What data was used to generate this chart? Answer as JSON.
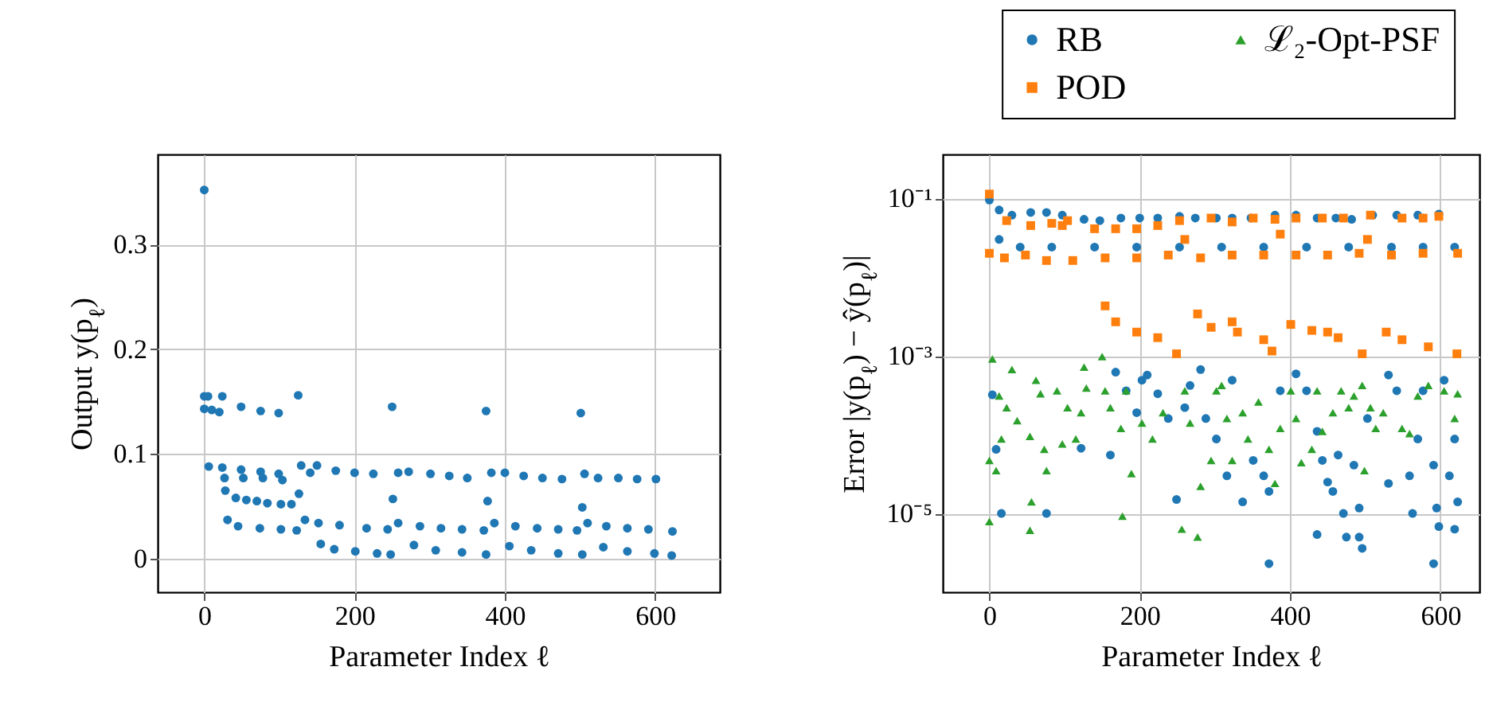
{
  "chart_data": [
    {
      "type": "scatter",
      "xlabel": "Parameter Index ℓ",
      "ylabel": "Output y(p$_{ℓ}$)",
      "color": "#1f77b4",
      "marker": "circle",
      "grid": true,
      "xlim": [
        -62,
        686
      ],
      "ylim": [
        -0.032,
        0.386
      ],
      "xticks": [
        0,
        200,
        400,
        600
      ],
      "yticks": [
        0,
        0.1,
        0.2,
        0.3
      ],
      "x": [
        0,
        0,
        5,
        24,
        49,
        75,
        99,
        125,
        250,
        375,
        501,
        0,
        10,
        20,
        6,
        24,
        27,
        49,
        52,
        75,
        78,
        99,
        104,
        129,
        141,
        150,
        175,
        200,
        225,
        258,
        272,
        301,
        326,
        350,
        382,
        400,
        425,
        450,
        476,
        506,
        524,
        551,
        576,
        601,
        28,
        42,
        56,
        70,
        84,
        102,
        116,
        126,
        251,
        377,
        503,
        31,
        45,
        74,
        102,
        123,
        134,
        152,
        180,
        216,
        244,
        258,
        287,
        315,
        343,
        372,
        386,
        414,
        443,
        471,
        496,
        510,
        535,
        563,
        591,
        623,
        155,
        173,
        201,
        230,
        248,
        279,
        308,
        343,
        375,
        406,
        435,
        471,
        503,
        531,
        563,
        599,
        622
      ],
      "values": [
        0.352,
        0.155,
        0.155,
        0.155,
        0.145,
        0.141,
        0.139,
        0.156,
        0.145,
        0.141,
        0.139,
        0.143,
        0.142,
        0.14,
        0.088,
        0.087,
        0.077,
        0.085,
        0.077,
        0.083,
        0.077,
        0.081,
        0.075,
        0.089,
        0.082,
        0.089,
        0.084,
        0.082,
        0.081,
        0.082,
        0.083,
        0.081,
        0.079,
        0.077,
        0.082,
        0.082,
        0.079,
        0.077,
        0.076,
        0.081,
        0.077,
        0.077,
        0.076,
        0.076,
        0.065,
        0.058,
        0.056,
        0.055,
        0.053,
        0.052,
        0.052,
        0.062,
        0.057,
        0.055,
        0.049,
        0.037,
        0.031,
        0.029,
        0.028,
        0.027,
        0.037,
        0.034,
        0.032,
        0.029,
        0.028,
        0.034,
        0.031,
        0.029,
        0.028,
        0.027,
        0.034,
        0.031,
        0.029,
        0.028,
        0.027,
        0.034,
        0.031,
        0.029,
        0.028,
        0.026,
        0.014,
        0.009,
        0.007,
        0.005,
        0.004,
        0.013,
        0.008,
        0.006,
        0.004,
        0.012,
        0.008,
        0.005,
        0.004,
        0.011,
        0.007,
        0.005,
        0.003
      ]
    },
    {
      "type": "scatter",
      "xlabel": "Parameter Index ℓ",
      "ylabel": "Error |y(p$_{ℓ}$) − ŷ(p$_{ℓ}$)|",
      "log": "y",
      "grid": true,
      "legend": "top",
      "xlim": [
        -62,
        652
      ],
      "ylim": [
        1e-06,
        0.36
      ],
      "xticks": [
        0,
        200,
        400,
        600
      ],
      "yticks": [
        {
          "value": 1e-05,
          "label": "10⁻⁵"
        },
        {
          "value": 0.001,
          "label": "10⁻³"
        },
        {
          "value": 0.1,
          "label": "10⁻¹"
        }
      ],
      "series": [
        {
          "name": "RB",
          "color": "#1f77b4",
          "marker": "circle",
          "x": [
            0,
            13,
            30,
            55,
            76,
            97,
            126,
            147,
            175,
            200,
            224,
            253,
            274,
            302,
            323,
            348,
            380,
            408,
            436,
            461,
            482,
            510,
            542,
            570,
            598,
            13,
            41,
            83,
            140,
            196,
            253,
            309,
            365,
            422,
            478,
            535,
            577,
            619,
            4,
            9,
            16,
            76,
            122,
            161,
            168,
            182,
            196,
            210,
            224,
            238,
            249,
            267,
            281,
            288,
            302,
            316,
            337,
            351,
            365,
            372,
            408,
            422,
            436,
            443,
            450,
            457,
            464,
            471,
            485,
            492,
            503,
            531,
            531,
            542,
            559,
            563,
            570,
            577,
            591,
            595,
            598,
            605,
            612,
            619,
            623,
            619,
            436,
            475,
            492,
            496,
            372,
            591,
            203,
            323,
            387,
            260
          ],
          "values": [
            0.095,
            0.071,
            0.061,
            0.066,
            0.066,
            0.061,
            0.054,
            0.052,
            0.056,
            0.056,
            0.056,
            0.059,
            0.056,
            0.056,
            0.056,
            0.056,
            0.061,
            0.061,
            0.056,
            0.056,
            0.054,
            0.061,
            0.061,
            0.061,
            0.063,
            0.03,
            0.024,
            0.024,
            0.024,
            0.024,
            0.024,
            0.024,
            0.024,
            0.024,
            0.024,
            0.024,
            0.024,
            0.024,
            0.00032,
            6.5e-05,
            1e-05,
            1e-05,
            6.7e-05,
            5.5e-05,
            0.00062,
            0.00036,
            0.00019,
            0.00057,
            0.00033,
            0.00016,
            1.5e-05,
            0.00042,
            0.00067,
            0.00016,
            8.8e-05,
            3e-05,
            1.4e-05,
            4.7e-05,
            3e-05,
            1.9e-05,
            0.00059,
            0.00036,
            0.00011,
            4.7e-05,
            2.5e-05,
            1.9e-05,
            5.5e-05,
            1e-05,
            4.1e-05,
            1.17e-05,
            0.00016,
            0.00057,
            2.4e-05,
            0.00036,
            3e-05,
            1e-05,
            8.8e-05,
            0.00036,
            4.1e-05,
            1.17e-05,
            6.8e-06,
            0.00049,
            3e-05,
            8.8e-05,
            1.4e-05,
            6.3e-06,
            5.4e-06,
            5e-06,
            5e-06,
            3.6e-06,
            2.3e-06,
            2.3e-06,
            0.00049,
            0.00049,
            0.00036,
            0.00022
          ]
        },
        {
          "name": "POD",
          "color": "#ff7f0e",
          "marker": "square",
          "x": [
            0,
            23,
            55,
            83,
            140,
            168,
            196,
            224,
            253,
            295,
            323,
            351,
            380,
            408,
            443,
            471,
            507,
            549,
            577,
            598,
            104,
            97,
            260,
            387,
            503,
            0,
            20,
            48,
            76,
            111,
            154,
            196,
            238,
            281,
            323,
            365,
            408,
            450,
            492,
            535,
            577,
            623,
            154,
            168,
            196,
            224,
            249,
            277,
            295,
            330,
            365,
            376,
            401,
            429,
            464,
            496,
            528,
            549,
            584,
            622,
            323,
            450
          ],
          "values": [
            0.113,
            0.052,
            0.045,
            0.048,
            0.041,
            0.041,
            0.041,
            0.045,
            0.052,
            0.056,
            0.05,
            0.056,
            0.054,
            0.056,
            0.056,
            0.056,
            0.061,
            0.056,
            0.056,
            0.059,
            0.052,
            0.045,
            0.03,
            0.035,
            0.03,
            0.02,
            0.0175,
            0.019,
            0.0162,
            0.0162,
            0.0175,
            0.0175,
            0.019,
            0.0175,
            0.019,
            0.019,
            0.019,
            0.019,
            0.02,
            0.019,
            0.02,
            0.02,
            0.0043,
            0.0027,
            0.002,
            0.0017,
            0.00106,
            0.0034,
            0.0023,
            0.002,
            0.0016,
            0.00115,
            0.0025,
            0.0021,
            0.0017,
            0.00106,
            0.002,
            0.0016,
            0.0013,
            0.00106,
            0.0027,
            0.002
          ]
        },
        {
          "name": "ℒ₂-Opt-PSF",
          "color": "#2ca02c",
          "marker": "triangle",
          "x": [
            4,
            0,
            0,
            9,
            13,
            16,
            23,
            30,
            37,
            54,
            54,
            56,
            62,
            68,
            73,
            76,
            90,
            97,
            104,
            115,
            122,
            126,
            129,
            150,
            154,
            161,
            175,
            177,
            182,
            189,
            203,
            217,
            231,
            256,
            260,
            267,
            277,
            281,
            295,
            302,
            309,
            316,
            323,
            337,
            344,
            358,
            372,
            380,
            387,
            401,
            408,
            415,
            429,
            436,
            443,
            457,
            468,
            478,
            485,
            496,
            499,
            507,
            514,
            524,
            549,
            559,
            570,
            584,
            605,
            619,
            623
          ],
          "values": [
            0.00091,
            4.7e-05,
            7.9e-06,
            3.5e-05,
            0.00031,
            8.8e-05,
            0.00022,
            0.00067,
            0.00015,
            9.5e-05,
            6.1e-06,
            1.4e-05,
            0.00049,
            0.00033,
            6.5e-05,
            3.5e-05,
            0.00036,
            7.6e-05,
            0.00022,
            8.8e-05,
            0.00019,
            0.00072,
            0.00039,
            0.00098,
            0.00036,
            0.00022,
            0.00012,
            9.2e-06,
            0.00036,
            3.2e-05,
            0.00014,
            8.8e-05,
            0.00019,
            6.3e-06,
            0.00036,
            0.00014,
            5e-06,
            2.2e-05,
            4.7e-05,
            0.00036,
            0.00042,
            0.00016,
            4.7e-05,
            0.00019,
            8.8e-05,
            0.00026,
            6.5e-05,
            2.4e-05,
            0.00012,
            0.00036,
            0.00016,
            4.4e-05,
            6.5e-05,
            0.00036,
            0.00011,
            0.00019,
            0.00036,
            0.00022,
            0.00031,
            0.00042,
            3.5e-05,
            0.00022,
            0.00012,
            0.00019,
            0.00012,
            0.000103,
            0.00031,
            0.00042,
            0.00036,
            0.00016,
            0.00033
          ]
        }
      ]
    }
  ]
}
